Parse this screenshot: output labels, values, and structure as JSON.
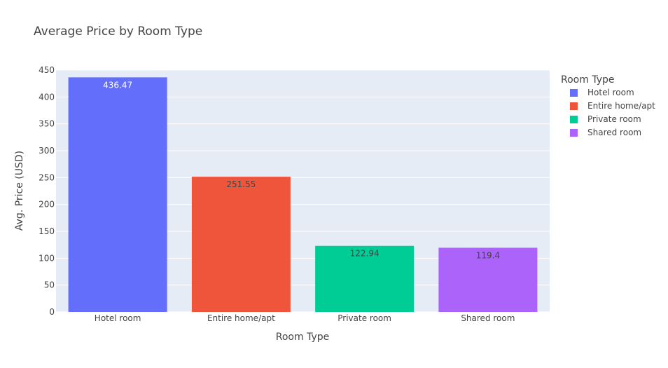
{
  "chart_data": {
    "type": "bar",
    "title": "Average Price by Room Type",
    "xlabel": "Room Type",
    "ylabel": "Avg. Price (USD)",
    "categories": [
      "Hotel room",
      "Entire home/apt",
      "Private room",
      "Shared room"
    ],
    "values": [
      436.47,
      251.55,
      122.94,
      119.4
    ],
    "value_labels": [
      "436.47",
      "251.55",
      "122.94",
      "119.4"
    ],
    "colors": [
      "#636efa",
      "#EF553B",
      "#00cc96",
      "#ab63fa"
    ],
    "label_colors": [
      "#ffffff",
      "#444444",
      "#444444",
      "#444444"
    ],
    "ylim": [
      0,
      450
    ],
    "yticks": [
      0,
      50,
      100,
      150,
      200,
      250,
      300,
      350,
      400,
      450
    ],
    "grid": true,
    "legend": {
      "title": "Room Type",
      "placement": "right",
      "entries": [
        "Hotel room",
        "Entire home/apt",
        "Private room",
        "Shared room"
      ]
    },
    "plot_background": "#e5ecf6"
  }
}
